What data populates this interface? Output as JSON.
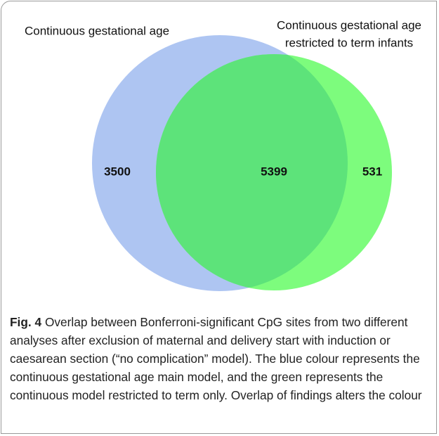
{
  "chart_data": {
    "type": "venn",
    "sets": [
      {
        "name_lines": [
          "Continuous gestational age"
        ],
        "color": "#aec5f2"
      },
      {
        "name_lines": [
          "Continuous gestational age",
          "restricted to term infants"
        ],
        "color": "#7dfc7d"
      }
    ],
    "overlap_color": "#5de37a",
    "regions": [
      "left only",
      "both",
      "right only"
    ],
    "values": [
      3500,
      5399,
      531
    ]
  },
  "caption": {
    "label": "Fig. 4",
    "text": "Overlap between Bonferroni-significant CpG sites from two different analyses after exclusion of maternal and delivery start with induction or caesarean section (“no complication” model). The blue colour represents the continuous gestational age main model, and the green represents the continuous model restricted to term only. Overlap of findings alters the colour"
  }
}
